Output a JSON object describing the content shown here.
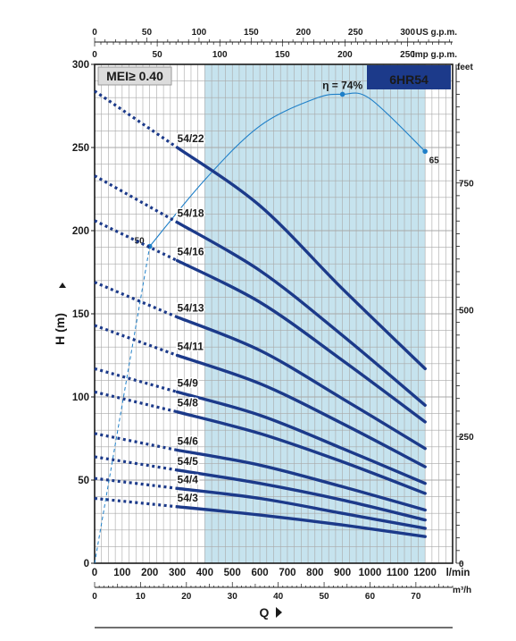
{
  "chart_data": {
    "type": "line",
    "model": "6HR54",
    "mei": "MEI≥ 0.40",
    "efficiency": {
      "label": "η = 74%",
      "value": 74,
      "point_labels": [
        "50",
        "65"
      ]
    },
    "y_left": {
      "label": "H (m)",
      "range": [
        0,
        300
      ],
      "ticks": [
        "0",
        "50",
        "100",
        "150",
        "200",
        "250",
        "300"
      ]
    },
    "y_right": {
      "unit": "feet",
      "range": [
        0,
        984
      ],
      "ticks": [
        "0",
        "250",
        "500",
        "750"
      ]
    },
    "x_lmin": {
      "unit": "l/min",
      "range": [
        0,
        1300
      ],
      "ticks": [
        "0",
        "100",
        "200",
        "300",
        "400",
        "500",
        "600",
        "700",
        "800",
        "900",
        "1000",
        "1100",
        "1200"
      ]
    },
    "x_m3h": {
      "label": "Q",
      "unit": "m³/h",
      "range": [
        0,
        78
      ],
      "ticks": [
        "0",
        "10",
        "20",
        "30",
        "40",
        "50",
        "60",
        "70"
      ]
    },
    "x_usgpm": {
      "unit": "US g.p.m.",
      "range": [
        0,
        343
      ],
      "ticks": [
        "0",
        "50",
        "100",
        "150",
        "200",
        "250",
        "300"
      ]
    },
    "x_impgpm": {
      "unit": "Imp g.p.m.",
      "range": [
        0,
        286
      ],
      "ticks": [
        "0",
        "50",
        "100",
        "150",
        "200",
        "250"
      ]
    },
    "recommended_range_lmin": [
      400,
      1200
    ],
    "series": [
      {
        "name": "54/22",
        "x": [
          0,
          300,
          600,
          900,
          1200
        ],
        "y": [
          284,
          250,
          215,
          165,
          117
        ]
      },
      {
        "name": "54/18",
        "x": [
          0,
          300,
          600,
          900,
          1200
        ],
        "y": [
          233,
          205,
          176,
          137,
          95
        ]
      },
      {
        "name": "54/16",
        "x": [
          0,
          300,
          600,
          900,
          1200
        ],
        "y": [
          206,
          182,
          157,
          122,
          85
        ]
      },
      {
        "name": "54/13",
        "x": [
          0,
          300,
          600,
          900,
          1200
        ],
        "y": [
          169,
          148,
          128,
          99,
          69
        ]
      },
      {
        "name": "54/11",
        "x": [
          0,
          300,
          600,
          900,
          1200
        ],
        "y": [
          143,
          125,
          108,
          84,
          58
        ]
      },
      {
        "name": "54/9",
        "x": [
          0,
          300,
          600,
          900,
          1200
        ],
        "y": [
          117,
          103,
          89,
          69,
          48
        ]
      },
      {
        "name": "54/8",
        "x": [
          0,
          300,
          600,
          900,
          1200
        ],
        "y": [
          103,
          91,
          78,
          61,
          42
        ]
      },
      {
        "name": "54/6",
        "x": [
          0,
          300,
          600,
          900,
          1200
        ],
        "y": [
          78,
          68,
          59,
          46,
          32
        ]
      },
      {
        "name": "54/5",
        "x": [
          0,
          300,
          600,
          900,
          1200
        ],
        "y": [
          64,
          56,
          48,
          38,
          26
        ]
      },
      {
        "name": "54/4",
        "x": [
          0,
          300,
          600,
          900,
          1200
        ],
        "y": [
          51,
          45,
          39,
          30,
          21
        ]
      },
      {
        "name": "54/3",
        "x": [
          0,
          300,
          600,
          900,
          1200
        ],
        "y": [
          39,
          34,
          29,
          23,
          16
        ]
      }
    ],
    "efficiency_curve": {
      "x": [
        0,
        200,
        400,
        600,
        800,
        900,
        1000,
        1200
      ],
      "eta": [
        0,
        50,
        60.5,
        69,
        73.3,
        74,
        73.3,
        65
      ]
    },
    "colors": {
      "curve": "#1c3a8a",
      "recommended_band": "#c6e3ee",
      "efficiency": "#1e7fc8",
      "grid": "#a8a8a8",
      "badge": "#1c3a8a"
    }
  }
}
